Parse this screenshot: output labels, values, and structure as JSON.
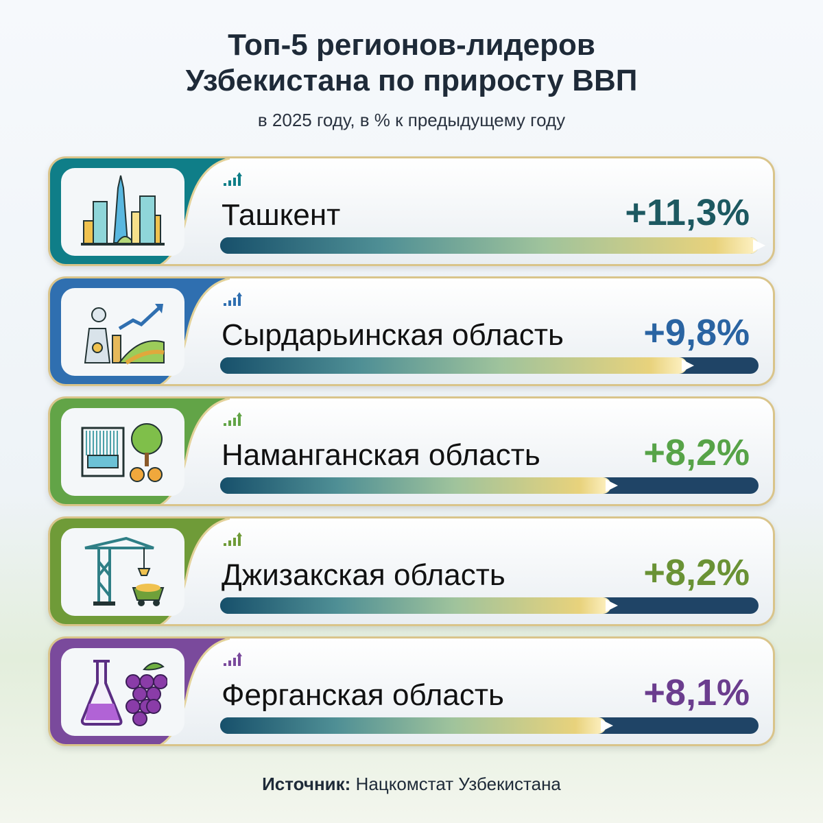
{
  "title_line1": "Топ-5 регионов-лидеров",
  "title_line2": "Узбекистана по приросту ВВП",
  "subtitle": "в 2025 году, в % к предыдущему году",
  "source_label": "Источник:",
  "source_value": "Нацкомстат Узбекистана",
  "chart_data": {
    "type": "bar",
    "orientation": "horizontal",
    "unit": "%",
    "categories": [
      "Ташкент",
      "Сырдарьинская область",
      "Наманганская область",
      "Джизакская область",
      "Ферганская область"
    ],
    "values": [
      11.3,
      9.8,
      8.2,
      8.2,
      8.1
    ],
    "labels": [
      "+11,3%",
      "+9,8%",
      "+8,2%",
      "+8,2%",
      "+8,1%"
    ],
    "icons": [
      "city-skyline-icon",
      "power-plant-farm-icon",
      "loom-fruit-tree-icon",
      "crane-mine-cart-icon",
      "flask-grapes-icon"
    ],
    "accent_colors": [
      "#0f7e88",
      "#2f6fb0",
      "#62a447",
      "#6f9b38",
      "#7a4a9c"
    ],
    "value_colors": [
      "#1d5961",
      "#2a64a2",
      "#57a348",
      "#6a9235",
      "#6b3d8e"
    ]
  }
}
